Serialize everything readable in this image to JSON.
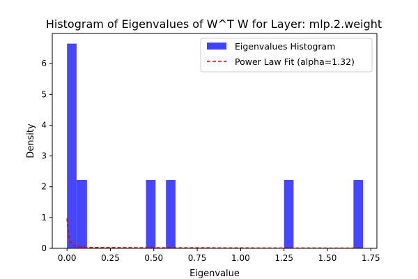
{
  "chart_data": {
    "type": "bar",
    "title": "Histogram of Eigenvalues of W^T W for Layer: mlp.2.weight",
    "xlabel": "Eigenvalue",
    "ylabel": "Density",
    "xlim": [
      -0.085,
      1.785
    ],
    "ylim": [
      0,
      6.98
    ],
    "x_ticks": [
      0.0,
      0.25,
      0.5,
      0.75,
      1.0,
      1.25,
      1.5,
      1.75
    ],
    "x_tick_labels": [
      "0.00",
      "0.25",
      "0.50",
      "0.75",
      "1.00",
      "1.25",
      "1.50",
      "1.75"
    ],
    "y_ticks": [
      0,
      1,
      2,
      3,
      4,
      5,
      6
    ],
    "y_tick_labels": [
      "0",
      "1",
      "2",
      "3",
      "4",
      "5",
      "6"
    ],
    "grid": false,
    "legend_position": "top-right",
    "histogram": {
      "name": "Eigenvalues Histogram",
      "color": "#4040ff",
      "bins": [
        {
          "x0": 0.0,
          "x1": 0.055,
          "density": 6.65
        },
        {
          "x0": 0.055,
          "x1": 0.115,
          "density": 2.22
        },
        {
          "x0": 0.455,
          "x1": 0.51,
          "density": 2.22
        },
        {
          "x0": 0.57,
          "x1": 0.625,
          "density": 2.22
        },
        {
          "x0": 1.25,
          "x1": 1.305,
          "density": 2.22
        },
        {
          "x0": 1.65,
          "x1": 1.705,
          "density": 2.22
        }
      ]
    },
    "fit_line": {
      "name": "Power Law Fit (alpha=1.32)",
      "color": "#e00000",
      "style": "dashed",
      "x": [
        0.0,
        0.005,
        0.01,
        0.015,
        0.02,
        0.03,
        0.04,
        0.06,
        0.08,
        0.1,
        0.12,
        0.2,
        0.4,
        0.8,
        1.2,
        1.7
      ],
      "y": [
        0.97,
        0.6,
        0.4,
        0.28,
        0.2,
        0.13,
        0.09,
        0.06,
        0.045,
        0.035,
        0.03,
        0.025,
        0.02,
        0.015,
        0.01,
        0.008
      ]
    }
  }
}
